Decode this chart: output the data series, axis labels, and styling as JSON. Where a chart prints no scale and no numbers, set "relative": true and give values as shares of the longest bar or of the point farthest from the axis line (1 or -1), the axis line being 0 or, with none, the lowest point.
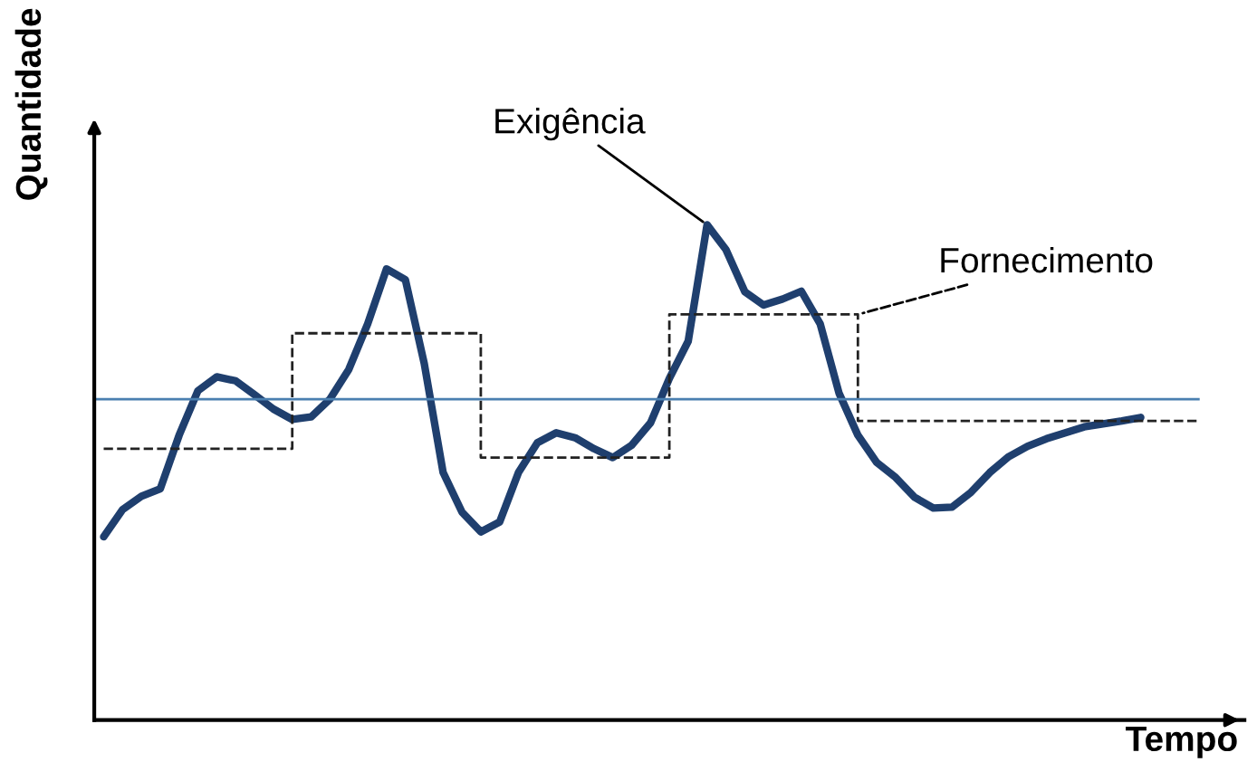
{
  "chart_data": {
    "type": "line",
    "relative": true,
    "xlabel": "Tempo",
    "ylabel": "Quantidade",
    "legend": false,
    "tick_labels": false,
    "categories": [
      null,
      null,
      null,
      null,
      null,
      null,
      null,
      null,
      null,
      null,
      null,
      null,
      null,
      null,
      null,
      null,
      null,
      null,
      null,
      null,
      null,
      null,
      null,
      null,
      null,
      null,
      null,
      null,
      null,
      null,
      null,
      null,
      null,
      null,
      null,
      null,
      null,
      null,
      null,
      null,
      null,
      null,
      null,
      null,
      null,
      null,
      null,
      null,
      null,
      null,
      null,
      null,
      null,
      null,
      null,
      null,
      null,
      null,
      null,
      null,
      null
    ],
    "series": [
      {
        "name": "Exigência",
        "color": "#1f3f6e",
        "line_style": "solid",
        "values": [
          0.37,
          0.425,
          0.452,
          0.467,
          0.575,
          0.665,
          0.693,
          0.685,
          0.657,
          0.628,
          0.607,
          0.612,
          0.648,
          0.708,
          0.8,
          0.911,
          0.889,
          0.72,
          0.5,
          0.42,
          0.38,
          0.4,
          0.5,
          0.56,
          0.58,
          0.57,
          0.548,
          0.53,
          0.555,
          0.6,
          0.69,
          0.765,
          1.0,
          0.95,
          0.865,
          0.838,
          0.85,
          0.866,
          0.8,
          0.66,
          0.575,
          0.52,
          0.49,
          0.45,
          0.428,
          0.43,
          0.46,
          0.5,
          0.532,
          0.553,
          0.568,
          0.58,
          0.592,
          0.598,
          0.604,
          0.611,
          null,
          null,
          null,
          null,
          null
        ]
      },
      {
        "name": "Fornecimento",
        "type": "step",
        "color": "#222222",
        "line_style": "dashed",
        "values": [
          0.548,
          0.548,
          0.548,
          0.548,
          0.548,
          0.548,
          0.548,
          0.548,
          0.548,
          0.548,
          0.548,
          0.781,
          0.781,
          0.781,
          0.781,
          0.781,
          0.781,
          0.781,
          0.781,
          0.781,
          0.781,
          0.53,
          0.53,
          0.53,
          0.53,
          0.53,
          0.53,
          0.53,
          0.53,
          0.53,
          0.53,
          0.819,
          0.819,
          0.819,
          0.819,
          0.819,
          0.819,
          0.819,
          0.819,
          0.819,
          0.819,
          0.604,
          0.604,
          0.604,
          0.604,
          0.604,
          0.604,
          0.604,
          0.604,
          0.604,
          0.604,
          0.604,
          0.604,
          0.604,
          0.604,
          0.604,
          0.604,
          0.604,
          0.604,
          null,
          null
        ]
      }
    ],
    "ref_lines": [
      {
        "axis": "y",
        "value": 0.648,
        "color": "#4a7fb0",
        "line_style": "solid"
      }
    ]
  }
}
